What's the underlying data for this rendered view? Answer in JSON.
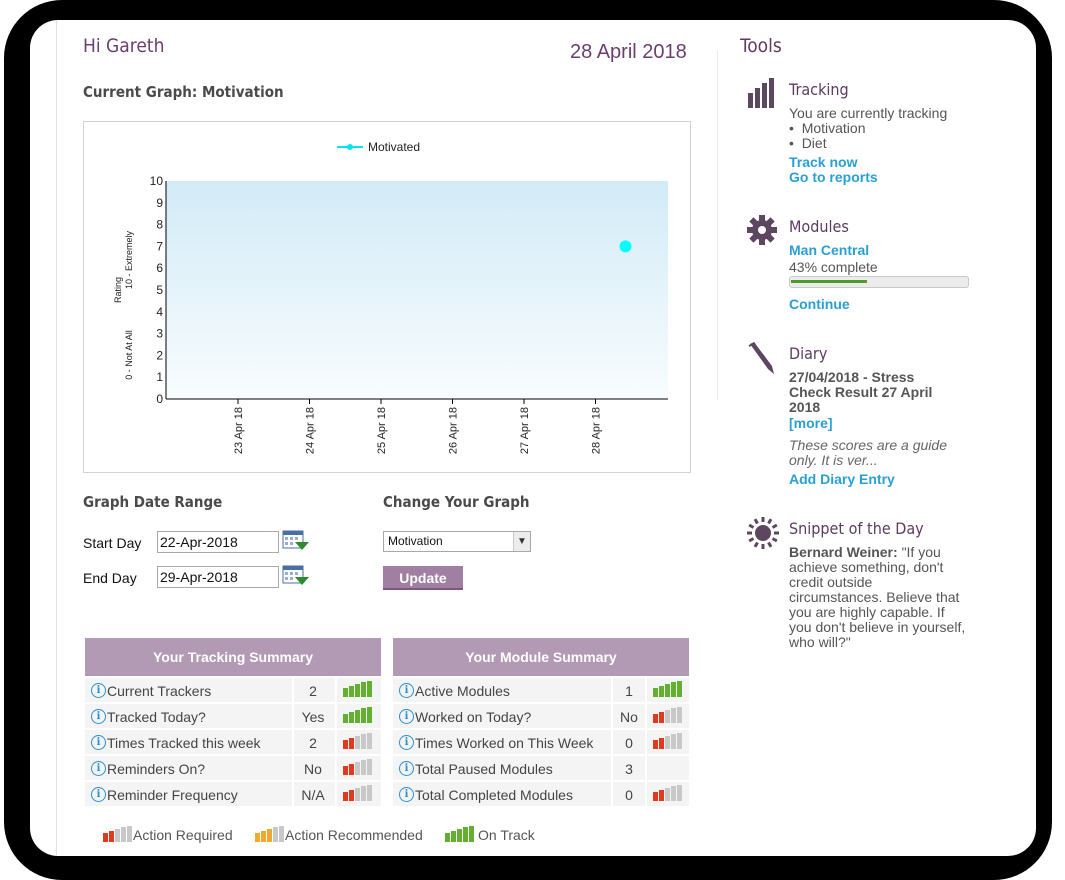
{
  "header": {
    "greeting": "Hi Gareth",
    "date": "28 April 2018"
  },
  "graph": {
    "title": "Current Graph: Motivation"
  },
  "chart_data": {
    "type": "scatter",
    "title": "",
    "legend": {
      "entries": [
        "Motivated"
      ],
      "placement": "top"
    },
    "ylabel": "Rating",
    "y_annotations": {
      "top": "10 - Extremely",
      "bottom": "0 - Not At All"
    },
    "ylim": [
      0,
      10
    ],
    "yticks": [
      0,
      1,
      2,
      3,
      4,
      5,
      6,
      7,
      8,
      9,
      10
    ],
    "x_categories": [
      "23 Apr 18",
      "24 Apr 18",
      "25 Apr 18",
      "26 Apr 18",
      "27 Apr 18",
      "28 Apr 18"
    ],
    "series": [
      {
        "name": "Motivated",
        "points": [
          {
            "x": "28 Apr 18",
            "y": 7
          }
        ],
        "color": "#00ffff"
      }
    ],
    "grid": false
  },
  "date_range": {
    "title": "Graph Date Range",
    "start_label": "Start Day",
    "start_value": "22-Apr-2018",
    "end_label": "End Day",
    "end_value": "29-Apr-2018"
  },
  "change_graph": {
    "title": "Change Your Graph",
    "selected": "Motivation",
    "update_label": "Update"
  },
  "tracking_summary": {
    "title": "Your Tracking Summary",
    "rows": [
      {
        "label": "Current Trackers",
        "value": "2",
        "status": "on-track"
      },
      {
        "label": "Tracked Today?",
        "value": "Yes",
        "status": "on-track"
      },
      {
        "label": "Times Tracked this week",
        "value": "2",
        "status": "action-required"
      },
      {
        "label": "Reminders On?",
        "value": "No",
        "status": "action-required"
      },
      {
        "label": "Reminder Frequency",
        "value": "N/A",
        "status": "action-required"
      }
    ]
  },
  "module_summary": {
    "title": "Your Module Summary",
    "rows": [
      {
        "label": "Active Modules",
        "value": "1",
        "status": "on-track"
      },
      {
        "label": "Worked on Today?",
        "value": "No",
        "status": "action-required"
      },
      {
        "label": "Times Worked on This Week",
        "value": "0",
        "status": "action-required"
      },
      {
        "label": "Total Paused Modules",
        "value": "3",
        "status": "none"
      },
      {
        "label": "Total Completed Modules",
        "value": "0",
        "status": "action-required"
      }
    ]
  },
  "legend": {
    "action_required": "Action Required",
    "action_recommended": "Action Recommended",
    "on_track": "On Track"
  },
  "colors": {
    "red": "#e03a1e",
    "grey": "#c8c8c8",
    "orange": "#f0a830",
    "green": "#62b030",
    "accent": "#6b3e6e",
    "link": "#2a9fd6"
  },
  "tools": {
    "title": "Tools",
    "tracking": {
      "title": "Tracking",
      "intro": "You are currently tracking",
      "items": [
        "Motivation",
        "Diet"
      ],
      "track_now": "Track now",
      "reports": "Go to reports"
    },
    "modules": {
      "title": "Modules",
      "module_name": "Man Central",
      "progress_text": "43% complete",
      "progress": 0.43,
      "continue": "Continue"
    },
    "diary": {
      "title": "Diary",
      "entry": "27/04/2018 - Stress Check Result 27 April 2018",
      "more": "[more]",
      "excerpt": "These scores are a guide only. It is ver...",
      "add": "Add Diary Entry"
    },
    "snippet": {
      "title": "Snippet of the Day",
      "author": "Bernard Weiner:",
      "quote": "\"If you achieve something, don't credit outside circumstances. Believe that you are highly capable. If you don't believe in yourself, who will?\""
    }
  }
}
